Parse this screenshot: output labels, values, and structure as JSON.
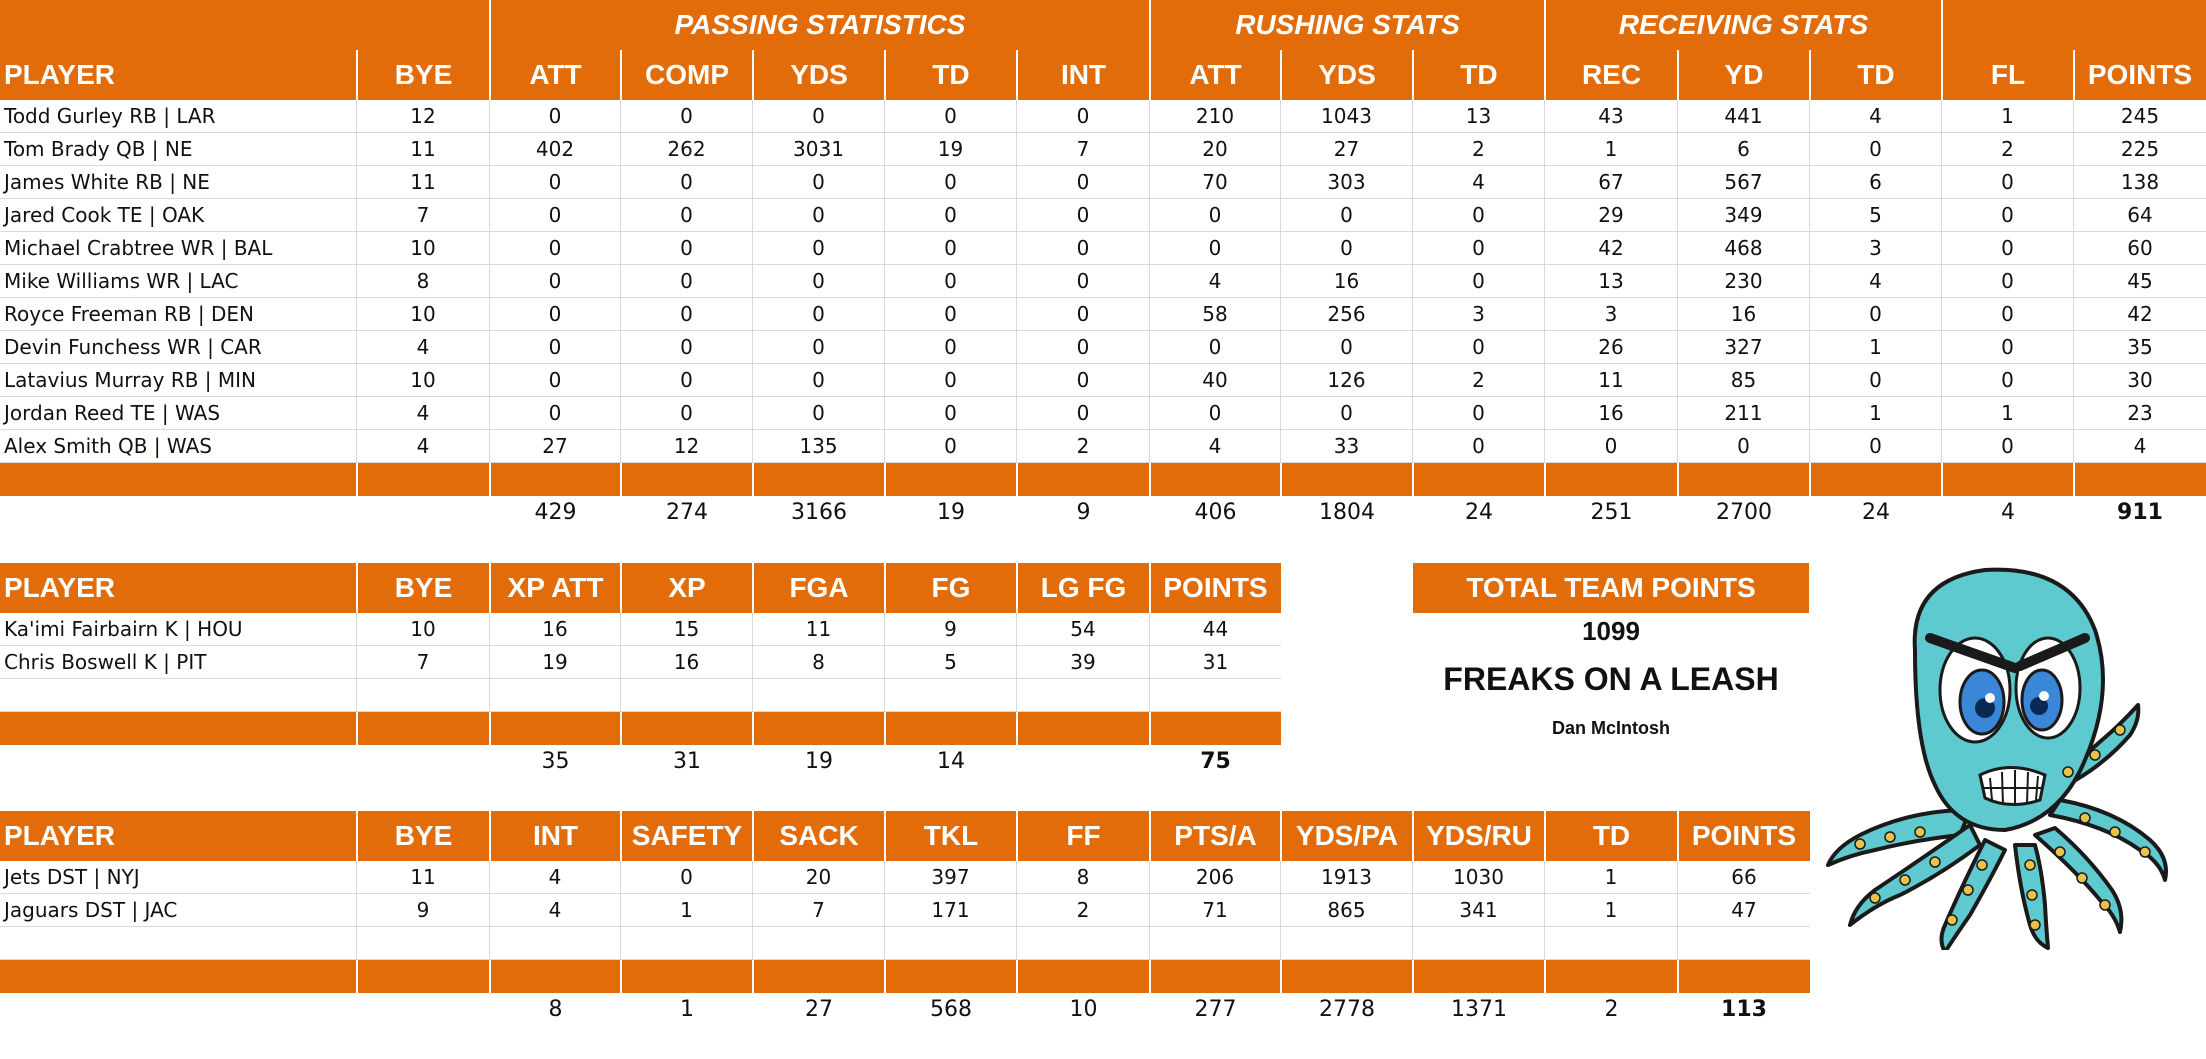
{
  "offense": {
    "group_headers": {
      "passing": "PASSING STATISTICS",
      "rushing": "RUSHING STATS",
      "receiving": "RECEIVING STATS"
    },
    "columns": [
      "PLAYER",
      "BYE",
      "ATT",
      "COMP",
      "YDS",
      "TD",
      "INT",
      "ATT",
      "YDS",
      "TD",
      "REC",
      "YD",
      "TD",
      "FL",
      "POINTS"
    ],
    "rows": [
      [
        "Todd Gurley RB | LAR",
        "12",
        "0",
        "0",
        "0",
        "0",
        "0",
        "210",
        "1043",
        "13",
        "43",
        "441",
        "4",
        "1",
        "245"
      ],
      [
        "Tom Brady QB | NE",
        "11",
        "402",
        "262",
        "3031",
        "19",
        "7",
        "20",
        "27",
        "2",
        "1",
        "6",
        "0",
        "2",
        "225"
      ],
      [
        "James White RB | NE",
        "11",
        "0",
        "0",
        "0",
        "0",
        "0",
        "70",
        "303",
        "4",
        "67",
        "567",
        "6",
        "0",
        "138"
      ],
      [
        "Jared Cook TE | OAK",
        "7",
        "0",
        "0",
        "0",
        "0",
        "0",
        "0",
        "0",
        "0",
        "29",
        "349",
        "5",
        "0",
        "64"
      ],
      [
        "Michael Crabtree WR | BAL",
        "10",
        "0",
        "0",
        "0",
        "0",
        "0",
        "0",
        "0",
        "0",
        "42",
        "468",
        "3",
        "0",
        "60"
      ],
      [
        "Mike Williams WR | LAC",
        "8",
        "0",
        "0",
        "0",
        "0",
        "0",
        "4",
        "16",
        "0",
        "13",
        "230",
        "4",
        "0",
        "45"
      ],
      [
        "Royce Freeman RB | DEN",
        "10",
        "0",
        "0",
        "0",
        "0",
        "0",
        "58",
        "256",
        "3",
        "3",
        "16",
        "0",
        "0",
        "42"
      ],
      [
        "Devin Funchess WR | CAR",
        "4",
        "0",
        "0",
        "0",
        "0",
        "0",
        "0",
        "0",
        "0",
        "26",
        "327",
        "1",
        "0",
        "35"
      ],
      [
        "Latavius Murray RB | MIN",
        "10",
        "0",
        "0",
        "0",
        "0",
        "0",
        "40",
        "126",
        "2",
        "11",
        "85",
        "0",
        "0",
        "30"
      ],
      [
        "Jordan Reed TE | WAS",
        "4",
        "0",
        "0",
        "0",
        "0",
        "0",
        "0",
        "0",
        "0",
        "16",
        "211",
        "1",
        "1",
        "23"
      ],
      [
        "Alex Smith QB | WAS",
        "4",
        "27",
        "12",
        "135",
        "0",
        "2",
        "4",
        "33",
        "0",
        "0",
        "0",
        "0",
        "0",
        "4"
      ]
    ],
    "totals": [
      "",
      "",
      "429",
      "274",
      "3166",
      "19",
      "9",
      "406",
      "1804",
      "24",
      "251",
      "2700",
      "24",
      "4",
      "911"
    ]
  },
  "kickers": {
    "columns": [
      "PLAYER",
      "BYE",
      "XP ATT",
      "XP",
      "FGA",
      "FG",
      "LG FG",
      "POINTS"
    ],
    "rows": [
      [
        "Ka'imi Fairbairn K | HOU",
        "10",
        "16",
        "15",
        "11",
        "9",
        "54",
        "44"
      ],
      [
        "Chris Boswell K | PIT",
        "7",
        "19",
        "16",
        "8",
        "5",
        "39",
        "31"
      ]
    ],
    "totals": [
      "",
      "",
      "35",
      "31",
      "19",
      "14",
      "",
      "75"
    ]
  },
  "defense": {
    "columns": [
      "PLAYER",
      "BYE",
      "INT",
      "SAFETY",
      "SACK",
      "TKL",
      "FF",
      "PTS/A",
      "YDS/PA",
      "YDS/RU",
      "TD",
      "POINTS"
    ],
    "rows": [
      [
        "Jets DST | NYJ",
        "11",
        "4",
        "0",
        "20",
        "397",
        "8",
        "206",
        "1913",
        "1030",
        "1",
        "66"
      ],
      [
        "Jaguars DST | JAC",
        "9",
        "4",
        "1",
        "7",
        "171",
        "2",
        "71",
        "865",
        "341",
        "1",
        "47"
      ]
    ],
    "totals": [
      "",
      "",
      "8",
      "1",
      "27",
      "568",
      "10",
      "277",
      "2778",
      "1371",
      "2",
      "113"
    ]
  },
  "summary": {
    "header": "TOTAL TEAM POINTS",
    "total_points": "1099",
    "team_name": "FREAKS ON A LEASH",
    "owner": "Dan McIntosh"
  },
  "logo": {
    "icon": "angry-octopus-icon",
    "body_color": "#5ec9cf",
    "eye_color": "#3a86d8"
  },
  "colors": {
    "accent": "#e36c0a",
    "header_text": "#ffffff",
    "grid": "#d9d9d9"
  }
}
